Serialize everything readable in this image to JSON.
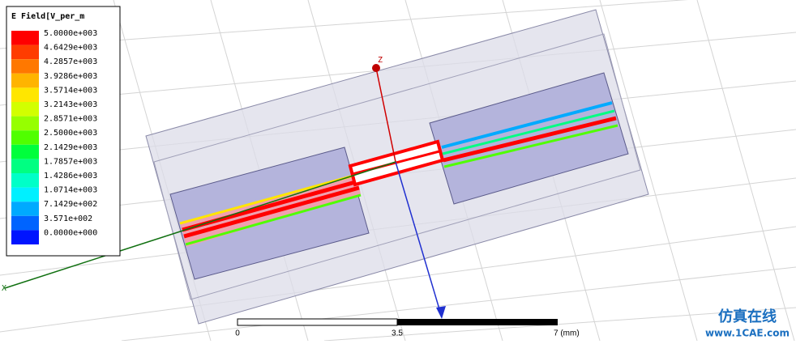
{
  "legend": {
    "title": "E Field[V_per_m",
    "items": [
      {
        "label": "5.0000e+003",
        "color": "#ff0000"
      },
      {
        "label": "4.6429e+003",
        "color": "#ff3c00"
      },
      {
        "label": "4.2857e+003",
        "color": "#ff7800"
      },
      {
        "label": "3.9286e+003",
        "color": "#ffb400"
      },
      {
        "label": "3.5714e+003",
        "color": "#ffe600"
      },
      {
        "label": "3.2143e+003",
        "color": "#d2ff00"
      },
      {
        "label": "2.8571e+003",
        "color": "#96ff00"
      },
      {
        "label": "2.5000e+003",
        "color": "#50ff00"
      },
      {
        "label": "2.1429e+003",
        "color": "#00ff3c"
      },
      {
        "label": "1.7857e+003",
        "color": "#00ff82"
      },
      {
        "label": "1.4286e+003",
        "color": "#00ffc8"
      },
      {
        "label": "1.0714e+003",
        "color": "#00f0ff"
      },
      {
        "label": "7.1429e+002",
        "color": "#00aaff"
      },
      {
        "label": "3.571e+002",
        "color": "#0064ff"
      },
      {
        "label": "0.0000e+000",
        "color": "#0014ff"
      }
    ]
  },
  "axes": {
    "z": "Z",
    "x": "X"
  },
  "scale_bar": {
    "start": "0",
    "middle": "3.5",
    "end": "7 (mm)"
  },
  "watermark": {
    "title": "仿真在线",
    "url": "www.1CAE.com"
  }
}
